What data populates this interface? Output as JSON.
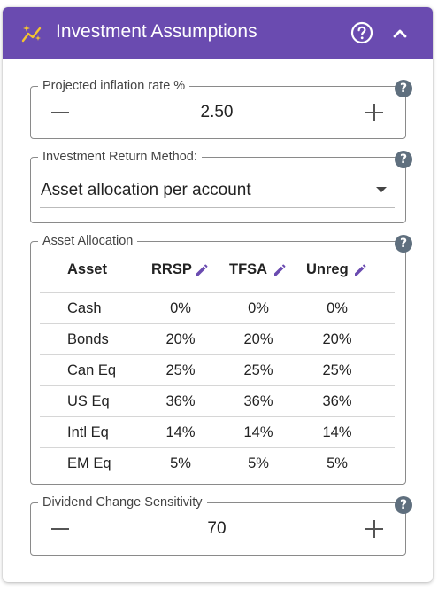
{
  "header": {
    "title": "Investment Assumptions",
    "icons": {
      "title": "sparkle-chart-icon",
      "help": "help-circle-icon",
      "collapse": "chevron-up-icon"
    },
    "background": "#6a4bb0"
  },
  "inflation": {
    "label": "Projected inflation rate %",
    "value": "2.50"
  },
  "return_method": {
    "label": "Investment Return Method:",
    "value": "Asset allocation per account"
  },
  "allocation": {
    "label": "Asset Allocation",
    "columns": [
      "Asset",
      "RRSP",
      "TFSA",
      "Unreg"
    ],
    "rows": [
      [
        "Cash",
        "0%",
        "0%",
        "0%"
      ],
      [
        "Bonds",
        "20%",
        "20%",
        "20%"
      ],
      [
        "Can Eq",
        "25%",
        "25%",
        "25%"
      ],
      [
        "US Eq",
        "36%",
        "36%",
        "36%"
      ],
      [
        "Intl Eq",
        "14%",
        "14%",
        "14%"
      ],
      [
        "EM Eq",
        "5%",
        "5%",
        "5%"
      ]
    ]
  },
  "dividend": {
    "label": "Dividend Change Sensitivity",
    "value": "70"
  },
  "colors": {
    "accent": "#6a4bb0",
    "help_dot": "#5f6f7e",
    "border": "#8a8a8a"
  }
}
